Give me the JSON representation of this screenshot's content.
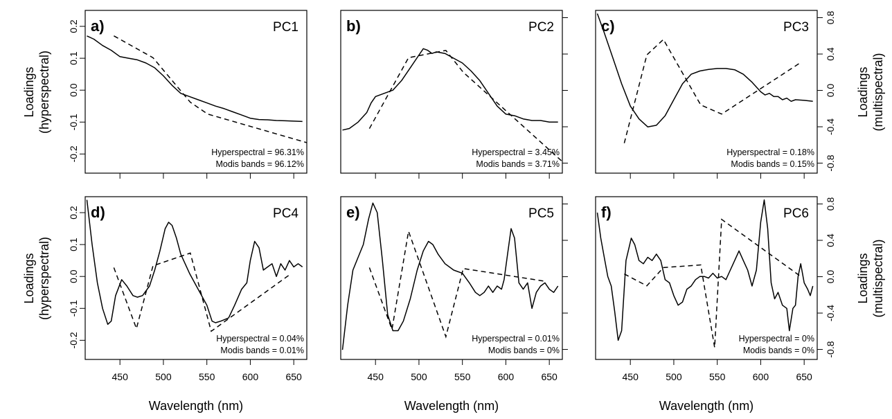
{
  "chart_data": {
    "type": "line",
    "xlabel": "Wavelength (nm)",
    "ylabel_left": [
      "Loadings",
      "(hyperspectral)"
    ],
    "ylabel_right": [
      "Loadings",
      "(multispectral)"
    ],
    "xlim": [
      410,
      665
    ],
    "x_ticks": [
      450,
      500,
      550,
      600,
      650
    ],
    "y_left": {
      "lim": [
        -0.26,
        0.25
      ],
      "ticks": [
        0.2,
        0.1,
        0.0,
        -0.1,
        -0.2
      ],
      "tick_labels": [
        "0.2",
        "0.1",
        "0.0",
        "-0.1",
        "-0.2"
      ]
    },
    "y_right": {
      "lim": [
        -0.91,
        0.88
      ],
      "ticks": [
        0.8,
        0.4,
        0.0,
        -0.4,
        -0.8
      ],
      "tick_labels": [
        "0.8",
        "0.4",
        "0.0",
        "-0.4",
        "-0.8"
      ]
    },
    "series_styles": {
      "hyperspectral": "solid",
      "modis": "dashed"
    },
    "panels": [
      {
        "letter": "a)",
        "pc": "PC1",
        "variance": [
          "Hyperspectral = 96.31%",
          "Modis bands = 96.12%"
        ],
        "hyperspectral": [
          [
            412,
            0.17
          ],
          [
            420,
            0.16
          ],
          [
            430,
            0.14
          ],
          [
            440,
            0.125
          ],
          [
            450,
            0.105
          ],
          [
            460,
            0.1
          ],
          [
            470,
            0.095
          ],
          [
            480,
            0.085
          ],
          [
            490,
            0.07
          ],
          [
            500,
            0.045
          ],
          [
            510,
            0.015
          ],
          [
            520,
            -0.01
          ],
          [
            530,
            -0.02
          ],
          [
            540,
            -0.03
          ],
          [
            550,
            -0.04
          ],
          [
            560,
            -0.05
          ],
          [
            570,
            -0.058
          ],
          [
            580,
            -0.068
          ],
          [
            590,
            -0.078
          ],
          [
            600,
            -0.088
          ],
          [
            610,
            -0.092
          ],
          [
            620,
            -0.093
          ],
          [
            630,
            -0.095
          ],
          [
            640,
            -0.096
          ],
          [
            650,
            -0.097
          ],
          [
            660,
            -0.098
          ]
        ],
        "modis": [
          [
            443,
            0.6
          ],
          [
            488,
            0.36
          ],
          [
            531,
            -0.13
          ],
          [
            551,
            -0.26
          ],
          [
            667,
            -0.58
          ]
        ]
      },
      {
        "letter": "b)",
        "pc": "PC2",
        "variance": [
          "Hyperspectral = 3.45%",
          "Modis bands = 3.71%"
        ],
        "hyperspectral": [
          [
            412,
            -0.125
          ],
          [
            420,
            -0.12
          ],
          [
            430,
            -0.1
          ],
          [
            440,
            -0.07
          ],
          [
            445,
            -0.04
          ],
          [
            450,
            -0.02
          ],
          [
            460,
            -0.01
          ],
          [
            470,
            0.0
          ],
          [
            480,
            0.03
          ],
          [
            490,
            0.07
          ],
          [
            500,
            0.11
          ],
          [
            505,
            0.13
          ],
          [
            510,
            0.125
          ],
          [
            515,
            0.115
          ],
          [
            520,
            0.12
          ],
          [
            530,
            0.115
          ],
          [
            540,
            0.1
          ],
          [
            550,
            0.085
          ],
          [
            560,
            0.06
          ],
          [
            570,
            0.03
          ],
          [
            580,
            -0.01
          ],
          [
            590,
            -0.05
          ],
          [
            600,
            -0.075
          ],
          [
            610,
            -0.08
          ],
          [
            620,
            -0.09
          ],
          [
            630,
            -0.095
          ],
          [
            640,
            -0.095
          ],
          [
            650,
            -0.1
          ],
          [
            660,
            -0.1
          ]
        ],
        "modis": [
          [
            443,
            -0.42
          ],
          [
            488,
            0.36
          ],
          [
            531,
            0.44
          ],
          [
            551,
            0.2
          ],
          [
            667,
            -0.8
          ]
        ]
      },
      {
        "letter": "c)",
        "pc": "PC3",
        "variance": [
          "Hyperspectral = 0.18%",
          "Modis bands = 0.15%"
        ],
        "hyperspectral": [
          [
            412,
            0.24
          ],
          [
            420,
            0.18
          ],
          [
            430,
            0.1
          ],
          [
            440,
            0.02
          ],
          [
            450,
            -0.05
          ],
          [
            460,
            -0.09
          ],
          [
            470,
            -0.115
          ],
          [
            480,
            -0.11
          ],
          [
            490,
            -0.08
          ],
          [
            500,
            -0.03
          ],
          [
            510,
            0.02
          ],
          [
            520,
            0.05
          ],
          [
            530,
            0.06
          ],
          [
            540,
            0.065
          ],
          [
            550,
            0.068
          ],
          [
            560,
            0.068
          ],
          [
            570,
            0.064
          ],
          [
            580,
            0.05
          ],
          [
            590,
            0.025
          ],
          [
            600,
            -0.005
          ],
          [
            605,
            -0.015
          ],
          [
            610,
            -0.01
          ],
          [
            615,
            -0.02
          ],
          [
            620,
            -0.02
          ],
          [
            625,
            -0.03
          ],
          [
            630,
            -0.025
          ],
          [
            635,
            -0.035
          ],
          [
            640,
            -0.03
          ],
          [
            650,
            -0.032
          ],
          [
            660,
            -0.035
          ]
        ],
        "modis": [
          [
            443,
            -0.58
          ],
          [
            469,
            0.39
          ],
          [
            488,
            0.56
          ],
          [
            531,
            -0.16
          ],
          [
            555,
            -0.26
          ],
          [
            645,
            0.3
          ]
        ]
      },
      {
        "letter": "d)",
        "pc": "PC4",
        "variance": [
          "Hyperspectral = 0.04%",
          "Modis bands = 0.01%"
        ],
        "hyperspectral": [
          [
            412,
            0.24
          ],
          [
            418,
            0.1
          ],
          [
            424,
            -0.02
          ],
          [
            430,
            -0.1
          ],
          [
            436,
            -0.15
          ],
          [
            440,
            -0.14
          ],
          [
            445,
            -0.06
          ],
          [
            452,
            -0.01
          ],
          [
            458,
            -0.03
          ],
          [
            465,
            -0.06
          ],
          [
            470,
            -0.065
          ],
          [
            476,
            -0.06
          ],
          [
            484,
            -0.03
          ],
          [
            490,
            0.02
          ],
          [
            496,
            0.08
          ],
          [
            502,
            0.15
          ],
          [
            506,
            0.17
          ],
          [
            510,
            0.16
          ],
          [
            515,
            0.12
          ],
          [
            520,
            0.07
          ],
          [
            530,
            0.01
          ],
          [
            540,
            -0.04
          ],
          [
            550,
            -0.09
          ],
          [
            556,
            -0.14
          ],
          [
            560,
            -0.145
          ],
          [
            566,
            -0.14
          ],
          [
            575,
            -0.13
          ],
          [
            582,
            -0.09
          ],
          [
            590,
            -0.04
          ],
          [
            596,
            -0.02
          ],
          [
            600,
            0.05
          ],
          [
            605,
            0.11
          ],
          [
            610,
            0.09
          ],
          [
            615,
            0.02
          ],
          [
            620,
            0.03
          ],
          [
            625,
            0.04
          ],
          [
            630,
            0.0
          ],
          [
            635,
            0.04
          ],
          [
            640,
            0.02
          ],
          [
            645,
            0.05
          ],
          [
            650,
            0.03
          ],
          [
            655,
            0.04
          ],
          [
            660,
            0.03
          ]
        ],
        "modis": [
          [
            443,
            0.1
          ],
          [
            469,
            -0.57
          ],
          [
            488,
            0.12
          ],
          [
            531,
            0.26
          ],
          [
            555,
            -0.6
          ],
          [
            645,
            0.02
          ]
        ]
      },
      {
        "letter": "e)",
        "pc": "PC5",
        "variance": [
          "Hyperspectral = 0.01%",
          "Modis bands = 0%"
        ],
        "hyperspectral": [
          [
            412,
            -0.23
          ],
          [
            418,
            -0.09
          ],
          [
            424,
            0.02
          ],
          [
            430,
            0.06
          ],
          [
            436,
            0.1
          ],
          [
            442,
            0.18
          ],
          [
            447,
            0.23
          ],
          [
            452,
            0.2
          ],
          [
            458,
            0.05
          ],
          [
            464,
            -0.12
          ],
          [
            470,
            -0.17
          ],
          [
            476,
            -0.17
          ],
          [
            482,
            -0.14
          ],
          [
            490,
            -0.07
          ],
          [
            498,
            0.02
          ],
          [
            505,
            0.08
          ],
          [
            511,
            0.11
          ],
          [
            516,
            0.1
          ],
          [
            522,
            0.07
          ],
          [
            530,
            0.04
          ],
          [
            540,
            0.02
          ],
          [
            550,
            0.01
          ],
          [
            558,
            -0.02
          ],
          [
            565,
            -0.05
          ],
          [
            570,
            -0.06
          ],
          [
            575,
            -0.05
          ],
          [
            580,
            -0.03
          ],
          [
            585,
            -0.05
          ],
          [
            590,
            -0.03
          ],
          [
            595,
            -0.04
          ],
          [
            598,
            -0.01
          ],
          [
            602,
            0.07
          ],
          [
            606,
            0.15
          ],
          [
            610,
            0.12
          ],
          [
            615,
            -0.02
          ],
          [
            620,
            -0.04
          ],
          [
            625,
            -0.02
          ],
          [
            630,
            -0.1
          ],
          [
            635,
            -0.05
          ],
          [
            640,
            -0.03
          ],
          [
            645,
            -0.02
          ],
          [
            650,
            -0.04
          ],
          [
            655,
            -0.05
          ],
          [
            660,
            -0.03
          ]
        ],
        "modis": [
          [
            443,
            0.1
          ],
          [
            469,
            -0.58
          ],
          [
            488,
            0.5
          ],
          [
            531,
            -0.66
          ],
          [
            551,
            0.09
          ],
          [
            645,
            -0.05
          ]
        ]
      },
      {
        "letter": "f)",
        "pc": "PC6",
        "variance": [
          "Hyperspectral = 0%",
          "Modis bands = 0%"
        ],
        "hyperspectral": [
          [
            412,
            0.2
          ],
          [
            416,
            0.12
          ],
          [
            420,
            0.06
          ],
          [
            424,
            0.0
          ],
          [
            428,
            -0.03
          ],
          [
            432,
            -0.11
          ],
          [
            436,
            -0.2
          ],
          [
            440,
            -0.17
          ],
          [
            445,
            0.05
          ],
          [
            451,
            0.12
          ],
          [
            455,
            0.1
          ],
          [
            460,
            0.05
          ],
          [
            465,
            0.04
          ],
          [
            470,
            0.06
          ],
          [
            475,
            0.05
          ],
          [
            480,
            0.07
          ],
          [
            485,
            0.05
          ],
          [
            490,
            -0.01
          ],
          [
            495,
            -0.02
          ],
          [
            500,
            -0.06
          ],
          [
            505,
            -0.09
          ],
          [
            510,
            -0.08
          ],
          [
            515,
            -0.04
          ],
          [
            520,
            -0.03
          ],
          [
            525,
            -0.01
          ],
          [
            530,
            0.0
          ],
          [
            535,
            0.0
          ],
          [
            540,
            -0.005
          ],
          [
            545,
            0.01
          ],
          [
            550,
            -0.005
          ],
          [
            555,
            0.0
          ],
          [
            560,
            -0.01
          ],
          [
            565,
            0.02
          ],
          [
            570,
            0.05
          ],
          [
            575,
            0.08
          ],
          [
            580,
            0.05
          ],
          [
            585,
            0.02
          ],
          [
            590,
            -0.03
          ],
          [
            595,
            0.02
          ],
          [
            600,
            0.17
          ],
          [
            604,
            0.24
          ],
          [
            608,
            0.15
          ],
          [
            612,
            -0.02
          ],
          [
            616,
            -0.07
          ],
          [
            620,
            -0.05
          ],
          [
            625,
            -0.09
          ],
          [
            630,
            -0.1
          ],
          [
            633,
            -0.17
          ],
          [
            637,
            -0.1
          ],
          [
            640,
            -0.09
          ],
          [
            643,
            0.0
          ],
          [
            646,
            0.04
          ],
          [
            650,
            -0.02
          ],
          [
            654,
            -0.04
          ],
          [
            657,
            -0.06
          ],
          [
            660,
            -0.03
          ]
        ],
        "modis": [
          [
            443,
            0.03
          ],
          [
            469,
            -0.1
          ],
          [
            488,
            0.1
          ],
          [
            531,
            0.13
          ],
          [
            547,
            -0.78
          ],
          [
            555,
            0.63
          ],
          [
            645,
            0.01
          ]
        ]
      }
    ]
  }
}
